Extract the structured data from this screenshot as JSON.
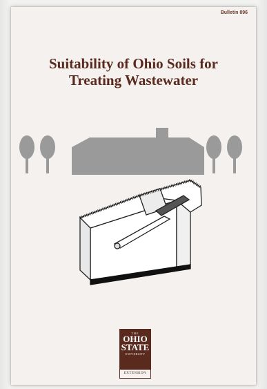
{
  "cover": {
    "bulletin": "Bulletin 896",
    "title_line1": "Suitability of Ohio Soils for",
    "title_line2": "Treating Wastewater"
  },
  "logo": {
    "line_the": "THE",
    "line_ohio": "OHIO",
    "line_state": "STATE",
    "line_university": "UNIVERSITY",
    "line_extension": "EXTENSION"
  },
  "colors": {
    "title": "#5a2a1e",
    "illustration_gray": "#999999",
    "logo_bg": "#5a2a1e"
  }
}
